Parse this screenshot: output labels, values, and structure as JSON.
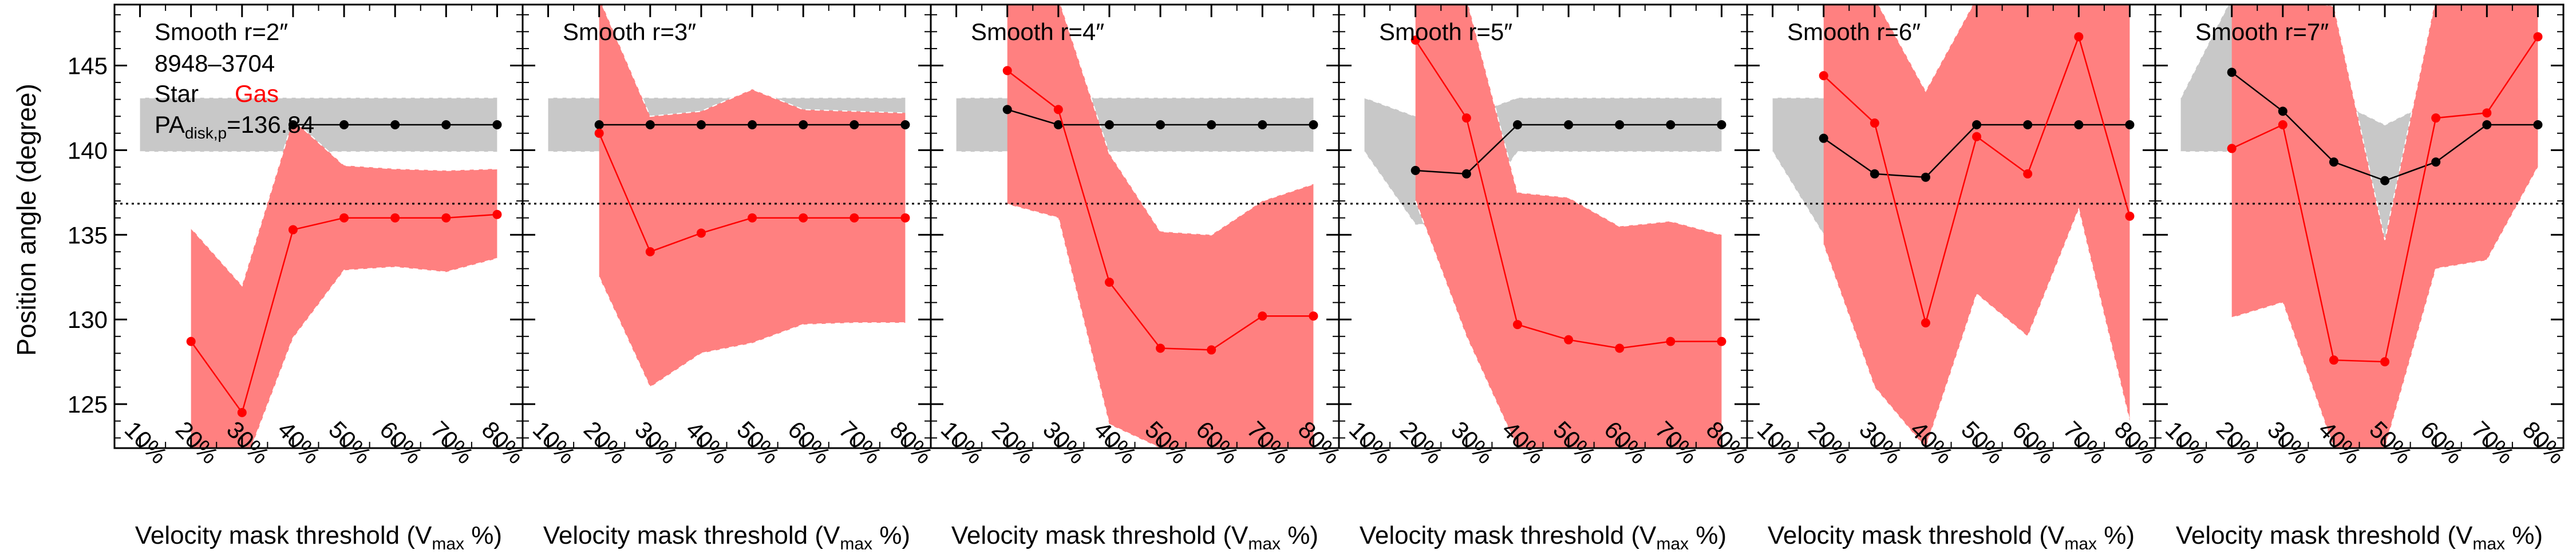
{
  "figure": {
    "ylabel": "Position angle (degree)",
    "xlabel_prefix": "Velocity mask threshold (V",
    "xlabel_sub": "max",
    "xlabel_suffix": " %)",
    "galaxy": "8948–3704",
    "legend_star": "Star",
    "legend_gas": "Gas",
    "pa_label_main": "PA",
    "pa_label_sub": "disk,p",
    "pa_label_value": "=136.84"
  },
  "colors": {
    "star": "#000000",
    "gas": "#ff0000",
    "star_band": "#c8c8c8",
    "gas_band": "#ff8080",
    "band_edge": "#ffffff"
  },
  "chart_data": {
    "type": "line",
    "xlim": [
      0.5,
      8.5
    ],
    "ylim": [
      122.4,
      148.6
    ],
    "x": [
      1,
      2,
      3,
      4,
      5,
      6,
      7,
      8
    ],
    "x_tick_labels": [
      "10%",
      "20%",
      "30%",
      "40%",
      "50%",
      "60%",
      "70%",
      "80%"
    ],
    "y_ticks": [
      125,
      130,
      135,
      140,
      145
    ],
    "reference_pa": 136.84,
    "panels": [
      {
        "title": "Smooth r=2″",
        "star": [
          null,
          null,
          null,
          141.5,
          141.5,
          141.5,
          141.5,
          141.5
        ],
        "star_band": [
          [
            139.9,
            143.1
          ],
          [
            139.9,
            143.1
          ],
          [
            139.9,
            143.1
          ],
          [
            139.9,
            143.1
          ],
          [
            139.9,
            143.1
          ],
          [
            139.9,
            143.1
          ],
          [
            139.9,
            143.1
          ],
          [
            139.9,
            143.1
          ]
        ],
        "gas": [
          null,
          128.7,
          124.5,
          135.3,
          136.0,
          136.0,
          136.0,
          136.2
        ],
        "gas_band": [
          null,
          [
            121.0,
            135.4
          ],
          [
            121.0,
            132.0
          ],
          [
            128.9,
            141.8
          ],
          [
            132.9,
            139.1
          ],
          [
            133.1,
            138.9
          ],
          [
            132.8,
            138.8
          ],
          [
            133.6,
            138.9
          ]
        ]
      },
      {
        "title": "Smooth r=3″",
        "star": [
          null,
          141.5,
          141.5,
          141.5,
          141.5,
          141.5,
          141.5,
          141.5
        ],
        "star_band": [
          [
            139.9,
            143.1
          ],
          [
            139.9,
            143.1
          ],
          [
            139.9,
            143.1
          ],
          [
            139.9,
            143.1
          ],
          [
            139.9,
            143.1
          ],
          [
            139.9,
            143.1
          ],
          [
            139.9,
            143.1
          ],
          [
            139.9,
            143.1
          ]
        ],
        "gas": [
          null,
          141.0,
          134.0,
          135.1,
          136.0,
          136.0,
          136.0,
          136.0
        ],
        "gas_band": [
          null,
          [
            132.5,
            149.0
          ],
          [
            126.0,
            142.0
          ],
          [
            128.0,
            142.3
          ],
          [
            128.6,
            143.6
          ],
          [
            129.7,
            142.4
          ],
          [
            129.8,
            142.3
          ],
          [
            129.8,
            142.2
          ]
        ]
      },
      {
        "title": "Smooth r=4″",
        "star": [
          null,
          142.4,
          141.5,
          141.5,
          141.5,
          141.5,
          141.5,
          141.5
        ],
        "star_band": [
          [
            139.9,
            143.1
          ],
          [
            139.9,
            143.1
          ],
          [
            139.9,
            143.1
          ],
          [
            139.9,
            143.1
          ],
          [
            139.9,
            143.1
          ],
          [
            139.9,
            143.1
          ],
          [
            139.9,
            143.1
          ],
          [
            139.9,
            143.1
          ]
        ],
        "gas": [
          null,
          144.7,
          142.4,
          132.2,
          128.3,
          128.2,
          130.2,
          130.2
        ],
        "gas_band": [
          null,
          [
            136.8,
            149.0
          ],
          [
            136.0,
            149.0
          ],
          [
            123.8,
            139.8
          ],
          [
            122.4,
            135.2
          ],
          [
            122.4,
            135.0
          ],
          [
            122.4,
            137.0
          ],
          [
            122.4,
            138.0
          ]
        ]
      },
      {
        "title": "Smooth r=5″",
        "star": [
          null,
          138.8,
          138.6,
          141.5,
          141.5,
          141.5,
          141.5,
          141.5
        ],
        "star_band": [
          [
            139.9,
            143.1
          ],
          [
            135.6,
            142.0
          ],
          [
            135.6,
            142.0
          ],
          [
            139.9,
            143.1
          ],
          [
            139.9,
            143.1
          ],
          [
            139.9,
            143.1
          ],
          [
            139.9,
            143.1
          ],
          [
            139.9,
            143.1
          ]
        ],
        "gas": [
          null,
          146.5,
          141.9,
          129.7,
          128.8,
          128.3,
          128.7,
          128.7
        ],
        "gas_band": [
          null,
          [
            137.0,
            149.0
          ],
          [
            129.0,
            149.0
          ],
          [
            122.4,
            137.5
          ],
          [
            122.4,
            137.2
          ],
          [
            122.4,
            135.5
          ],
          [
            122.4,
            135.8
          ],
          [
            122.4,
            135.0
          ]
        ]
      },
      {
        "title": "Smooth r=6″",
        "star": [
          null,
          140.7,
          138.6,
          138.4,
          141.5,
          141.5,
          141.5,
          141.5
        ],
        "star_band": [
          [
            139.9,
            143.1
          ],
          [
            135.0,
            143.1
          ],
          [
            135.5,
            141.2
          ],
          [
            135.4,
            141.5
          ],
          [
            139.9,
            143.1
          ],
          [
            139.9,
            143.1
          ],
          [
            139.9,
            143.1
          ],
          [
            139.9,
            143.1
          ]
        ],
        "gas": [
          null,
          144.4,
          141.6,
          129.8,
          140.8,
          138.6,
          146.7,
          136.1
        ],
        "gas_band": [
          null,
          [
            134.4,
            149.0
          ],
          [
            126.0,
            149.0
          ],
          [
            122.4,
            143.5
          ],
          [
            131.5,
            149.0
          ],
          [
            129.0,
            149.0
          ],
          [
            136.5,
            149.0
          ],
          [
            124.0,
            148.8
          ]
        ]
      },
      {
        "title": "Smooth r=7″",
        "star": [
          null,
          144.6,
          142.3,
          139.3,
          138.2,
          139.3,
          141.5,
          141.5
        ],
        "star_band": [
          [
            139.9,
            143.1
          ],
          [
            139.9,
            149.0
          ],
          [
            138.5,
            146.0
          ],
          [
            135.4,
            143.0
          ],
          [
            134.5,
            141.5
          ],
          [
            135.5,
            143.0
          ],
          [
            139.9,
            143.1
          ],
          [
            139.9,
            143.1
          ]
        ],
        "gas": [
          null,
          140.1,
          141.5,
          127.6,
          127.5,
          141.9,
          142.2,
          146.7
        ],
        "gas_band": [
          null,
          [
            130.1,
            149.0
          ],
          [
            131.0,
            149.0
          ],
          [
            122.4,
            148.5
          ],
          [
            122.4,
            134.7
          ],
          [
            133.0,
            149.0
          ],
          [
            133.5,
            149.0
          ],
          [
            139.0,
            149.0
          ]
        ]
      }
    ]
  }
}
